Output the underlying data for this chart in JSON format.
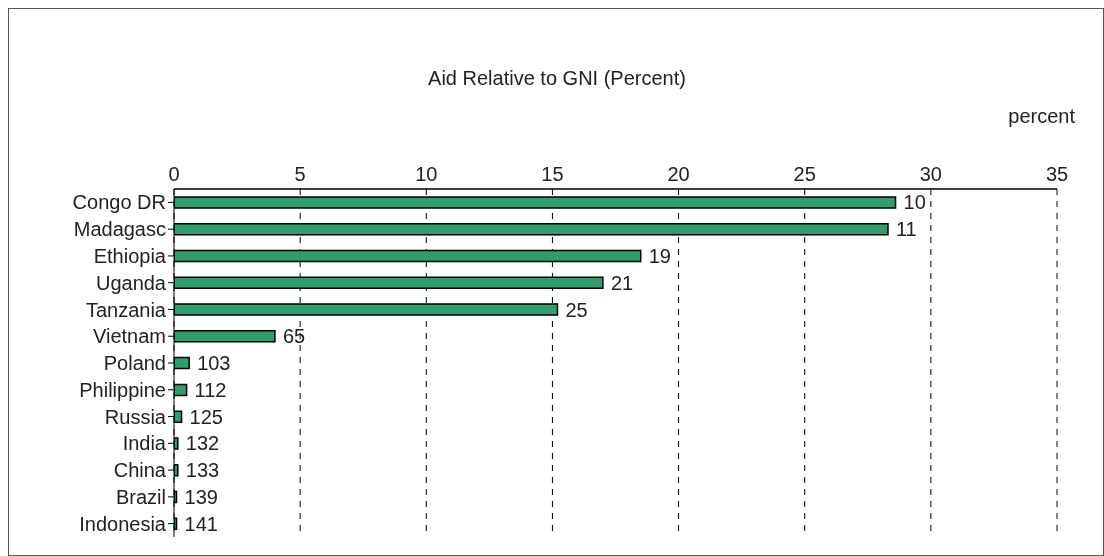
{
  "chart_data": {
    "type": "bar",
    "orientation": "horizontal",
    "title": "Aid Relative to GNI (Percent)",
    "xlabel": "percent",
    "categories": [
      "Congo DR",
      "Madagasc",
      "Ethiopia",
      "Uganda",
      "Tanzania",
      "Vietnam",
      "Poland",
      "Philippine",
      "Russia",
      "India",
      "China",
      "Brazil",
      "Indonesia"
    ],
    "values": [
      28.6,
      28.3,
      18.5,
      17.0,
      15.2,
      4.0,
      0.6,
      0.5,
      0.3,
      0.15,
      0.15,
      0.1,
      0.1
    ],
    "annotations": [
      {
        "text": "10",
        "x": 28.6,
        "y": "Congo DR"
      },
      {
        "text": "11",
        "x": 28.3,
        "y": "Madagasc"
      },
      {
        "text": "19",
        "x": 18.5,
        "y": "Ethiopia"
      },
      {
        "text": "21",
        "x": 17.0,
        "y": "Uganda"
      },
      {
        "text": "25",
        "x": 15.2,
        "y": "Tanzania"
      },
      {
        "text": "65",
        "x": 4.0,
        "y": "Vietnam"
      },
      {
        "text": "103",
        "x": 0.6,
        "y": "Poland"
      },
      {
        "text": "112",
        "x": 0.5,
        "y": "Philippine"
      },
      {
        "text": "125",
        "x": 0.3,
        "y": "Russia"
      },
      {
        "text": "132",
        "x": 0.15,
        "y": "India"
      },
      {
        "text": "133",
        "x": 0.15,
        "y": "China"
      },
      {
        "text": "139",
        "x": 0.1,
        "y": "Brazil"
      },
      {
        "text": "141",
        "x": 0.1,
        "y": "Indonesia"
      }
    ],
    "color": "#2e9e6e",
    "xlim": [
      0,
      35
    ],
    "xticks": [
      0,
      5,
      10,
      15,
      20,
      25,
      30,
      35
    ],
    "grid": "x",
    "line_style": "dashed"
  }
}
